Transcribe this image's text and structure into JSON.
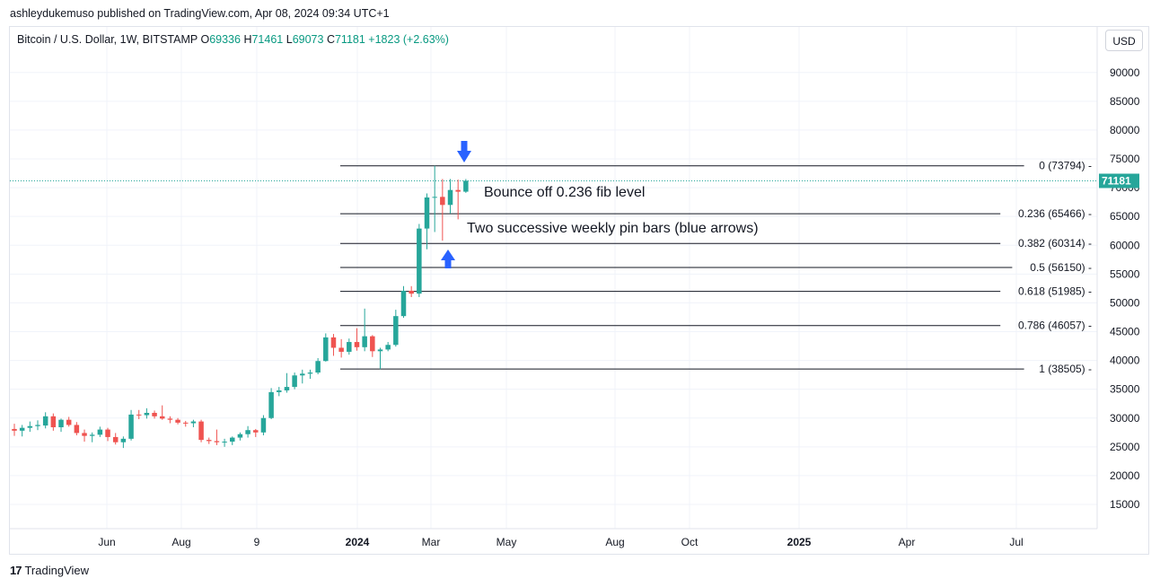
{
  "published": "ashleydukemuso published on TradingView.com, Apr 08, 2024 09:34 UTC+1",
  "legend": {
    "symbol": "Bitcoin / U.S. Dollar, 1W, BITSTAMP",
    "o_label": "O",
    "o_value": "69336",
    "h_label": "H",
    "h_value": "71461",
    "l_label": "L",
    "l_value": "69073",
    "c_label": "C",
    "c_value": "71181",
    "change": "+1823 (+2.63%)"
  },
  "currency_button": "USD",
  "footer": {
    "logo_mark": "17",
    "brand": "TradingView"
  },
  "colors": {
    "up": "#26a69a",
    "down": "#ef5350",
    "price_line": "#26a69a",
    "fib_line": "#131722",
    "arrow": "#2962ff",
    "grid": "#f0f3fa"
  },
  "chart_data": {
    "type": "candlestick",
    "title": "Bitcoin / U.S. Dollar, 1W, BITSTAMP",
    "x_tick_labels": [
      "Jun",
      "Aug",
      "9",
      "2024",
      "Mar",
      "May",
      "Aug",
      "Oct",
      "2025",
      "Apr",
      "Jul"
    ],
    "y_tick_labels": [
      15000,
      20000,
      25000,
      30000,
      35000,
      40000,
      45000,
      50000,
      55000,
      60000,
      65000,
      70000,
      75000,
      80000,
      85000,
      90000
    ],
    "ylim": [
      12000,
      95000
    ],
    "grid": true,
    "current_price": "71181",
    "fib_levels": [
      {
        "label": "0 (73794)",
        "value": 73794
      },
      {
        "label": "0.236 (65466)",
        "value": 65466
      },
      {
        "label": "0.382 (60314)",
        "value": 60314
      },
      {
        "label": "0.5 (56150)",
        "value": 56150
      },
      {
        "label": "0.618 (51985)",
        "value": 51985
      },
      {
        "label": "0.786 (46057)",
        "value": 46057
      },
      {
        "label": "1 (38505)",
        "value": 38505
      }
    ],
    "annotations": [
      "Bounce off 0.236 fib level",
      "Two successive weekly pin bars (blue arrows)"
    ],
    "candles": [
      {
        "o": 28100,
        "h": 29000,
        "l": 26900,
        "c": 27800
      },
      {
        "o": 27800,
        "h": 28800,
        "l": 26800,
        "c": 28300
      },
      {
        "o": 28300,
        "h": 29400,
        "l": 27600,
        "c": 28600
      },
      {
        "o": 28600,
        "h": 29600,
        "l": 27900,
        "c": 28800
      },
      {
        "o": 28700,
        "h": 31000,
        "l": 28200,
        "c": 30300
      },
      {
        "o": 30300,
        "h": 30800,
        "l": 27800,
        "c": 28400
      },
      {
        "o": 28400,
        "h": 29900,
        "l": 27600,
        "c": 29700
      },
      {
        "o": 29700,
        "h": 30200,
        "l": 28500,
        "c": 28800
      },
      {
        "o": 28800,
        "h": 29300,
        "l": 27000,
        "c": 27400
      },
      {
        "o": 27400,
        "h": 28000,
        "l": 25900,
        "c": 26900
      },
      {
        "o": 26900,
        "h": 27500,
        "l": 25800,
        "c": 27100
      },
      {
        "o": 27100,
        "h": 28500,
        "l": 26700,
        "c": 28000
      },
      {
        "o": 28000,
        "h": 28300,
        "l": 26000,
        "c": 26700
      },
      {
        "o": 26700,
        "h": 27400,
        "l": 25400,
        "c": 25800
      },
      {
        "o": 25800,
        "h": 26800,
        "l": 24800,
        "c": 26400
      },
      {
        "o": 26400,
        "h": 31400,
        "l": 26100,
        "c": 30600
      },
      {
        "o": 30600,
        "h": 31400,
        "l": 29800,
        "c": 30500
      },
      {
        "o": 30500,
        "h": 31700,
        "l": 29900,
        "c": 30900
      },
      {
        "o": 30900,
        "h": 31300,
        "l": 29900,
        "c": 30300
      },
      {
        "o": 30300,
        "h": 32200,
        "l": 29700,
        "c": 29900
      },
      {
        "o": 29900,
        "h": 30300,
        "l": 29100,
        "c": 29700
      },
      {
        "o": 29700,
        "h": 30000,
        "l": 28900,
        "c": 29200
      },
      {
        "o": 29200,
        "h": 29500,
        "l": 28500,
        "c": 29100
      },
      {
        "o": 29100,
        "h": 29700,
        "l": 28400,
        "c": 29400
      },
      {
        "o": 29400,
        "h": 29700,
        "l": 25800,
        "c": 26200
      },
      {
        "o": 26200,
        "h": 26600,
        "l": 25500,
        "c": 26000
      },
      {
        "o": 26000,
        "h": 28000,
        "l": 25300,
        "c": 25800
      },
      {
        "o": 25800,
        "h": 26400,
        "l": 25000,
        "c": 25900
      },
      {
        "o": 25900,
        "h": 26800,
        "l": 25300,
        "c": 26600
      },
      {
        "o": 26600,
        "h": 27500,
        "l": 26100,
        "c": 27200
      },
      {
        "o": 27200,
        "h": 28600,
        "l": 26600,
        "c": 27900
      },
      {
        "o": 27900,
        "h": 28100,
        "l": 26700,
        "c": 27500
      },
      {
        "o": 27500,
        "h": 30500,
        "l": 27000,
        "c": 30000
      },
      {
        "o": 30000,
        "h": 35200,
        "l": 29800,
        "c": 34500
      },
      {
        "o": 34500,
        "h": 35400,
        "l": 33800,
        "c": 34800
      },
      {
        "o": 34800,
        "h": 37800,
        "l": 34400,
        "c": 35400
      },
      {
        "o": 35400,
        "h": 37900,
        "l": 35000,
        "c": 37400
      },
      {
        "o": 37400,
        "h": 38400,
        "l": 36000,
        "c": 37700
      },
      {
        "o": 37700,
        "h": 38400,
        "l": 36800,
        "c": 37900
      },
      {
        "o": 37900,
        "h": 40400,
        "l": 37600,
        "c": 39900
      },
      {
        "o": 39900,
        "h": 44700,
        "l": 39800,
        "c": 44000
      },
      {
        "o": 44000,
        "h": 44600,
        "l": 40800,
        "c": 42200
      },
      {
        "o": 42200,
        "h": 43700,
        "l": 40500,
        "c": 41500
      },
      {
        "o": 41500,
        "h": 43800,
        "l": 41000,
        "c": 43200
      },
      {
        "o": 43200,
        "h": 45600,
        "l": 41700,
        "c": 42300
      },
      {
        "o": 42300,
        "h": 49000,
        "l": 41600,
        "c": 44200
      },
      {
        "o": 44200,
        "h": 44400,
        "l": 40600,
        "c": 41600
      },
      {
        "o": 41600,
        "h": 42200,
        "l": 38500,
        "c": 41900
      },
      {
        "o": 41900,
        "h": 43200,
        "l": 41600,
        "c": 42700
      },
      {
        "o": 42700,
        "h": 48800,
        "l": 42400,
        "c": 47700
      },
      {
        "o": 47700,
        "h": 52900,
        "l": 47400,
        "c": 52100
      },
      {
        "o": 52100,
        "h": 52900,
        "l": 51000,
        "c": 51600
      },
      {
        "o": 51600,
        "h": 63700,
        "l": 51000,
        "c": 62900
      },
      {
        "o": 62900,
        "h": 69000,
        "l": 59300,
        "c": 68300
      },
      {
        "o": 68300,
        "h": 73800,
        "l": 62300,
        "c": 68400
      },
      {
        "o": 68400,
        "h": 71500,
        "l": 60800,
        "c": 67000
      },
      {
        "o": 67000,
        "h": 71500,
        "l": 65500,
        "c": 69600
      },
      {
        "o": 69600,
        "h": 71400,
        "l": 64500,
        "c": 69300
      },
      {
        "o": 69300,
        "h": 71500,
        "l": 69100,
        "c": 71200
      }
    ]
  }
}
